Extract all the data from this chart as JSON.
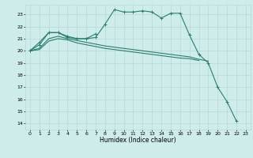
{
  "xlabel": "Humidex (Indice chaleur)",
  "bg_color": "#ceecea",
  "grid_color": "#b8d8d5",
  "line_color": "#2e7d70",
  "xlim": [
    -0.5,
    23.5
  ],
  "ylim": [
    13.5,
    23.8
  ],
  "yticks": [
    14,
    15,
    16,
    17,
    18,
    19,
    20,
    21,
    22,
    23
  ],
  "xticks": [
    0,
    1,
    2,
    3,
    4,
    5,
    6,
    7,
    8,
    9,
    10,
    11,
    12,
    13,
    14,
    15,
    16,
    17,
    18,
    19,
    20,
    21,
    22,
    23
  ],
  "line1_y": [
    20.0,
    20.7,
    21.5,
    21.5,
    21.2,
    21.0,
    21.0,
    21.1,
    22.2,
    23.4,
    23.2,
    23.2,
    23.3,
    23.2,
    22.7,
    23.1,
    23.1,
    21.3,
    19.7,
    19.0,
    17.0,
    15.8,
    14.2,
    null
  ],
  "line2_y": [
    20.0,
    20.5,
    21.5,
    21.5,
    21.1,
    21.0,
    21.0,
    21.4,
    null,
    null,
    null,
    null,
    null,
    null,
    null,
    null,
    null,
    null,
    null,
    null,
    null,
    null,
    null,
    null
  ],
  "line3_y": [
    20.0,
    20.2,
    21.0,
    21.2,
    21.0,
    20.85,
    20.7,
    20.55,
    20.4,
    20.3,
    20.2,
    20.1,
    20.0,
    19.9,
    19.8,
    19.7,
    19.6,
    19.5,
    19.3,
    19.15,
    null,
    null,
    null,
    null
  ],
  "line4_y": [
    20.0,
    20.1,
    20.8,
    21.0,
    20.9,
    20.65,
    20.5,
    20.35,
    20.2,
    20.1,
    20.0,
    19.9,
    19.8,
    19.7,
    19.6,
    19.5,
    19.4,
    19.35,
    19.2,
    null,
    null,
    null,
    null,
    null
  ]
}
